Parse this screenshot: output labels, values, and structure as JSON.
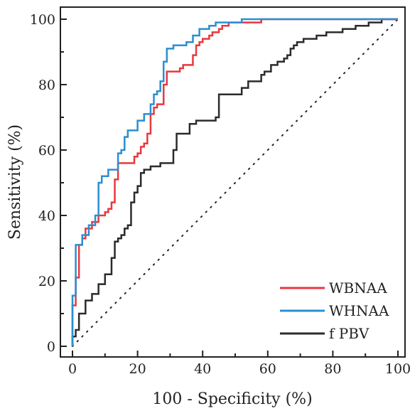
{
  "chart_data": {
    "type": "line",
    "title": "",
    "xlabel": "100 - Specificity (%)",
    "ylabel": "Sensitivity (%)",
    "xlim": [
      0,
      100
    ],
    "ylim": [
      0,
      100
    ],
    "x_ticks": [
      "0",
      "20",
      "40",
      "60",
      "80",
      "100"
    ],
    "y_ticks": [
      "0",
      "20",
      "40",
      "60",
      "80",
      "100"
    ],
    "grid": false,
    "legend_position": "bottom-right",
    "reference_line": {
      "style": "dotted",
      "points": [
        [
          0,
          0
        ],
        [
          100,
          100
        ]
      ]
    },
    "series": [
      {
        "name": "WBNAA",
        "color": "#e8383d",
        "points": [
          [
            0,
            0
          ],
          [
            0,
            12.5
          ],
          [
            1,
            12.5
          ],
          [
            1,
            21
          ],
          [
            2,
            21
          ],
          [
            2,
            31
          ],
          [
            3,
            31
          ],
          [
            3,
            33
          ],
          [
            4,
            33
          ],
          [
            4,
            36
          ],
          [
            6,
            36
          ],
          [
            6,
            38
          ],
          [
            8,
            38
          ],
          [
            8,
            40
          ],
          [
            10,
            40
          ],
          [
            10,
            41
          ],
          [
            11,
            41
          ],
          [
            11,
            42
          ],
          [
            12,
            42
          ],
          [
            12,
            44
          ],
          [
            13,
            44
          ],
          [
            13,
            51
          ],
          [
            14,
            51
          ],
          [
            14,
            56
          ],
          [
            19,
            56
          ],
          [
            19,
            58
          ],
          [
            20,
            58
          ],
          [
            20,
            59
          ],
          [
            21,
            59
          ],
          [
            21,
            61
          ],
          [
            22,
            61
          ],
          [
            22,
            62
          ],
          [
            23,
            62
          ],
          [
            23,
            65
          ],
          [
            24,
            65
          ],
          [
            24,
            71
          ],
          [
            25,
            71
          ],
          [
            25,
            73
          ],
          [
            26,
            73
          ],
          [
            26,
            74
          ],
          [
            28,
            74
          ],
          [
            28,
            80
          ],
          [
            29,
            80
          ],
          [
            29,
            84
          ],
          [
            33,
            84
          ],
          [
            33,
            85
          ],
          [
            34,
            85
          ],
          [
            34,
            86
          ],
          [
            37,
            86
          ],
          [
            37,
            89
          ],
          [
            38,
            89
          ],
          [
            38,
            92
          ],
          [
            39,
            92
          ],
          [
            39,
            93
          ],
          [
            40,
            93
          ],
          [
            40,
            94
          ],
          [
            42,
            94
          ],
          [
            42,
            95
          ],
          [
            43,
            95
          ],
          [
            43,
            96
          ],
          [
            45,
            96
          ],
          [
            45,
            97
          ],
          [
            46,
            97
          ],
          [
            46,
            98
          ],
          [
            48,
            98
          ],
          [
            48,
            99
          ],
          [
            58,
            99
          ],
          [
            58,
            100
          ],
          [
            100,
            100
          ]
        ]
      },
      {
        "name": "WHNAA",
        "color": "#2a8fd0",
        "points": [
          [
            0,
            0
          ],
          [
            0,
            15.5
          ],
          [
            1,
            15.5
          ],
          [
            1,
            31
          ],
          [
            3,
            31
          ],
          [
            3,
            34
          ],
          [
            5,
            34
          ],
          [
            5,
            37
          ],
          [
            7,
            37
          ],
          [
            7,
            40
          ],
          [
            8,
            40
          ],
          [
            8,
            50
          ],
          [
            9,
            50
          ],
          [
            9,
            52
          ],
          [
            11,
            52
          ],
          [
            11,
            54
          ],
          [
            14,
            54
          ],
          [
            14,
            59
          ],
          [
            15,
            59
          ],
          [
            15,
            60
          ],
          [
            16,
            60
          ],
          [
            16,
            64
          ],
          [
            17,
            64
          ],
          [
            17,
            66
          ],
          [
            20,
            66
          ],
          [
            20,
            69
          ],
          [
            22,
            69
          ],
          [
            22,
            71
          ],
          [
            24,
            71
          ],
          [
            24,
            74
          ],
          [
            25,
            74
          ],
          [
            25,
            77
          ],
          [
            26,
            77
          ],
          [
            26,
            78
          ],
          [
            27,
            78
          ],
          [
            27,
            81
          ],
          [
            28,
            81
          ],
          [
            28,
            87
          ],
          [
            29,
            87
          ],
          [
            29,
            91
          ],
          [
            31,
            91
          ],
          [
            31,
            92
          ],
          [
            35,
            92
          ],
          [
            35,
            93
          ],
          [
            37,
            93
          ],
          [
            37,
            95
          ],
          [
            39,
            95
          ],
          [
            39,
            97
          ],
          [
            42,
            97
          ],
          [
            42,
            98
          ],
          [
            44,
            98
          ],
          [
            44,
            99
          ],
          [
            52,
            99
          ],
          [
            52,
            100
          ],
          [
            100,
            100
          ]
        ]
      },
      {
        "name": "f PBV",
        "color": "#2b2b2b",
        "points": [
          [
            0,
            0
          ],
          [
            0,
            3
          ],
          [
            1,
            3
          ],
          [
            1,
            5
          ],
          [
            2,
            5
          ],
          [
            2,
            10
          ],
          [
            4,
            10
          ],
          [
            4,
            14
          ],
          [
            6,
            14
          ],
          [
            6,
            16
          ],
          [
            8,
            16
          ],
          [
            8,
            19
          ],
          [
            10,
            19
          ],
          [
            10,
            22
          ],
          [
            12,
            22
          ],
          [
            12,
            27
          ],
          [
            13,
            27
          ],
          [
            13,
            32
          ],
          [
            14,
            32
          ],
          [
            14,
            33
          ],
          [
            15,
            33
          ],
          [
            15,
            34
          ],
          [
            16,
            34
          ],
          [
            16,
            36
          ],
          [
            17,
            36
          ],
          [
            17,
            37
          ],
          [
            18,
            37
          ],
          [
            18,
            44
          ],
          [
            19,
            44
          ],
          [
            19,
            47
          ],
          [
            20,
            47
          ],
          [
            20,
            49
          ],
          [
            21,
            49
          ],
          [
            21,
            53
          ],
          [
            22,
            53
          ],
          [
            22,
            54
          ],
          [
            24,
            54
          ],
          [
            24,
            55
          ],
          [
            27,
            55
          ],
          [
            27,
            56
          ],
          [
            31,
            56
          ],
          [
            31,
            60
          ],
          [
            32,
            60
          ],
          [
            32,
            65
          ],
          [
            36,
            65
          ],
          [
            36,
            68
          ],
          [
            38,
            68
          ],
          [
            38,
            69
          ],
          [
            44,
            69
          ],
          [
            44,
            70
          ],
          [
            45,
            70
          ],
          [
            45,
            77
          ],
          [
            52,
            77
          ],
          [
            52,
            79
          ],
          [
            54,
            79
          ],
          [
            54,
            81
          ],
          [
            58,
            81
          ],
          [
            58,
            83
          ],
          [
            59,
            83
          ],
          [
            59,
            84
          ],
          [
            61,
            84
          ],
          [
            61,
            86
          ],
          [
            63,
            86
          ],
          [
            63,
            87
          ],
          [
            65,
            87
          ],
          [
            65,
            88
          ],
          [
            66,
            88
          ],
          [
            66,
            89
          ],
          [
            67,
            89
          ],
          [
            67,
            91
          ],
          [
            68,
            91
          ],
          [
            68,
            92
          ],
          [
            69,
            92
          ],
          [
            69,
            93
          ],
          [
            71,
            93
          ],
          [
            71,
            94
          ],
          [
            75,
            94
          ],
          [
            75,
            95
          ],
          [
            78,
            95
          ],
          [
            78,
            96
          ],
          [
            83,
            96
          ],
          [
            83,
            97
          ],
          [
            87,
            97
          ],
          [
            87,
            98
          ],
          [
            91,
            98
          ],
          [
            91,
            99
          ],
          [
            95,
            99
          ],
          [
            95,
            100
          ],
          [
            100,
            100
          ]
        ]
      }
    ]
  }
}
